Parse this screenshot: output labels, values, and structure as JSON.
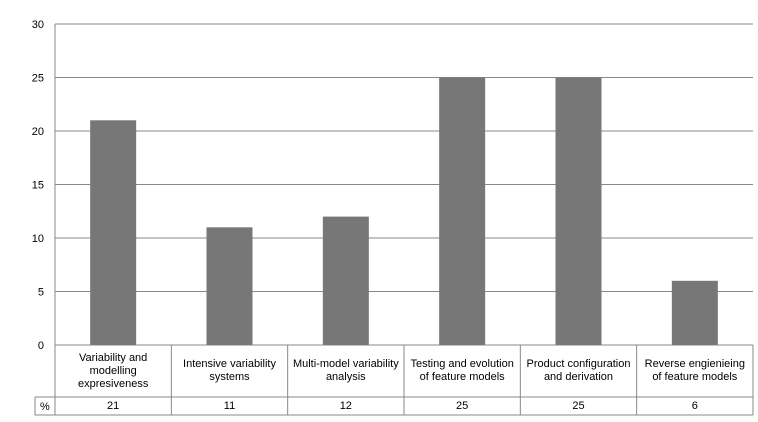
{
  "chart_data": {
    "type": "bar",
    "categories": [
      "Variability and modelling expresiveness",
      "Intensive variability systems",
      "Multi-model variability analysis",
      "Testing and evolution of feature models",
      "Product configuration and derivation",
      "Reverse engienieing of feature models"
    ],
    "series": [
      {
        "name": "%",
        "values": [
          21,
          11,
          12,
          25,
          25,
          6
        ]
      }
    ],
    "table_row_label": "%",
    "yticks": [
      0,
      5,
      10,
      15,
      20,
      25,
      30
    ],
    "ylim": [
      0,
      30
    ],
    "grid": true,
    "bar_color": "#777777",
    "grid_color": "#888888"
  }
}
